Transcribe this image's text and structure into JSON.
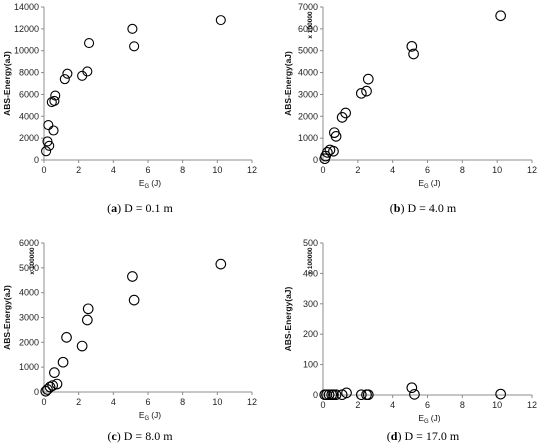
{
  "chart_data": [
    {
      "type": "scatter",
      "panel_letter": "a",
      "caption": "D = 0.1 m",
      "ylabel": "ABS-Energy(aJ)",
      "multiplier": "",
      "xlabel_main": "E",
      "xlabel_sub": "G",
      "xlabel_unit": "(J)",
      "xlim": [
        0,
        12
      ],
      "ylim": [
        0,
        14000
      ],
      "x_ticks": [
        "0",
        "2",
        "4",
        "6",
        "8",
        "10",
        "12"
      ],
      "y_ticks": [
        "0",
        "2000",
        "4000",
        "6000",
        "8000",
        "10000",
        "12000",
        "14000"
      ],
      "points": [
        {
          "x": 0.12,
          "y": 800
        },
        {
          "x": 0.2,
          "y": 1700
        },
        {
          "x": 0.3,
          "y": 1300
        },
        {
          "x": 0.25,
          "y": 3200
        },
        {
          "x": 0.55,
          "y": 2700
        },
        {
          "x": 0.45,
          "y": 5300
        },
        {
          "x": 0.6,
          "y": 5400
        },
        {
          "x": 0.65,
          "y": 5900
        },
        {
          "x": 1.2,
          "y": 7400
        },
        {
          "x": 1.35,
          "y": 7900
        },
        {
          "x": 2.2,
          "y": 7700
        },
        {
          "x": 2.5,
          "y": 8100
        },
        {
          "x": 2.6,
          "y": 10700
        },
        {
          "x": 5.1,
          "y": 12000
        },
        {
          "x": 5.2,
          "y": 10400
        },
        {
          "x": 10.2,
          "y": 12800
        }
      ]
    },
    {
      "type": "scatter",
      "panel_letter": "b",
      "caption": "D = 4.0 m",
      "ylabel": "ABS-Energy(aJ)",
      "multiplier": "x 100000",
      "xlabel_main": "E",
      "xlabel_sub": "G",
      "xlabel_unit": "(J)",
      "xlim": [
        0,
        12
      ],
      "ylim": [
        0,
        7000
      ],
      "x_ticks": [
        "0",
        "2",
        "4",
        "6",
        "8",
        "10",
        "12"
      ],
      "y_ticks": [
        "0",
        "1000",
        "2000",
        "3000",
        "4000",
        "5000",
        "6000",
        "7000"
      ],
      "points": [
        {
          "x": 0.1,
          "y": 60
        },
        {
          "x": 0.15,
          "y": 180
        },
        {
          "x": 0.25,
          "y": 350
        },
        {
          "x": 0.4,
          "y": 460
        },
        {
          "x": 0.6,
          "y": 400
        },
        {
          "x": 0.65,
          "y": 1250
        },
        {
          "x": 0.75,
          "y": 1080
        },
        {
          "x": 1.1,
          "y": 1950
        },
        {
          "x": 1.3,
          "y": 2150
        },
        {
          "x": 2.2,
          "y": 3050
        },
        {
          "x": 2.5,
          "y": 3150
        },
        {
          "x": 2.6,
          "y": 3700
        },
        {
          "x": 5.1,
          "y": 5200
        },
        {
          "x": 5.2,
          "y": 4850
        },
        {
          "x": 10.2,
          "y": 6600
        }
      ]
    },
    {
      "type": "scatter",
      "panel_letter": "c",
      "caption": "D = 8.0 m",
      "ylabel": "ABS-Energy(aJ)",
      "multiplier": "x 100000",
      "xlabel_main": "E",
      "xlabel_sub": "G",
      "xlabel_unit": "(J)",
      "xlim": [
        0,
        12
      ],
      "ylim": [
        0,
        6000
      ],
      "x_ticks": [
        "0",
        "2",
        "4",
        "6",
        "8",
        "10",
        "12"
      ],
      "y_ticks": [
        "0",
        "1000",
        "2000",
        "3000",
        "4000",
        "5000",
        "6000"
      ],
      "points": [
        {
          "x": 0.1,
          "y": 30
        },
        {
          "x": 0.2,
          "y": 100
        },
        {
          "x": 0.35,
          "y": 200
        },
        {
          "x": 0.5,
          "y": 260
        },
        {
          "x": 0.6,
          "y": 780
        },
        {
          "x": 0.75,
          "y": 320
        },
        {
          "x": 1.1,
          "y": 1200
        },
        {
          "x": 1.3,
          "y": 2200
        },
        {
          "x": 2.2,
          "y": 1850
        },
        {
          "x": 2.5,
          "y": 2900
        },
        {
          "x": 2.55,
          "y": 3350
        },
        {
          "x": 5.1,
          "y": 4650
        },
        {
          "x": 5.2,
          "y": 3700
        },
        {
          "x": 10.2,
          "y": 5150
        }
      ]
    },
    {
      "type": "scatter",
      "panel_letter": "d",
      "caption": "D = 17.0 m",
      "ylabel": "ABS-Energy(aJ)",
      "multiplier": "x 100000",
      "xlabel_main": "E",
      "xlabel_sub": "G",
      "xlabel_unit": "(J)",
      "xlim": [
        0,
        12
      ],
      "ylim": [
        0,
        500
      ],
      "x_ticks": [
        "0",
        "2",
        "4",
        "6",
        "8",
        "10",
        "12"
      ],
      "y_ticks": [
        "0",
        "100",
        "200",
        "300",
        "400",
        "500"
      ],
      "points": [
        {
          "x": 0.1,
          "y": 1
        },
        {
          "x": 0.2,
          "y": 1
        },
        {
          "x": 0.35,
          "y": 1
        },
        {
          "x": 0.5,
          "y": 1
        },
        {
          "x": 0.6,
          "y": 1
        },
        {
          "x": 0.75,
          "y": 1
        },
        {
          "x": 1.1,
          "y": 1
        },
        {
          "x": 1.35,
          "y": 7
        },
        {
          "x": 2.2,
          "y": 1
        },
        {
          "x": 2.5,
          "y": 1
        },
        {
          "x": 2.6,
          "y": 1
        },
        {
          "x": 5.1,
          "y": 24
        },
        {
          "x": 5.25,
          "y": 2
        },
        {
          "x": 10.2,
          "y": 3
        }
      ]
    }
  ]
}
